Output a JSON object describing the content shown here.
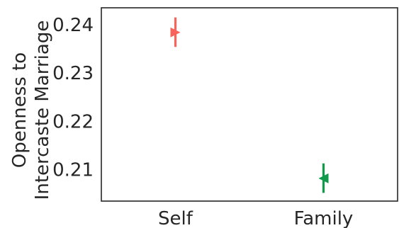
{
  "chart_data": {
    "type": "scatter",
    "title": "",
    "ylabel_lines": [
      "Openness to",
      "Intercaste Marriage"
    ],
    "xlabel": "",
    "categories": [
      "Self",
      "Family"
    ],
    "ylim": [
      0.2035,
      0.2435
    ],
    "yticks": [
      0.21,
      0.22,
      0.23,
      0.24
    ],
    "ytick_labels": [
      "0.21",
      "0.22",
      "0.23",
      "0.24"
    ],
    "grid": false,
    "points": [
      {
        "category": "Self",
        "value": 0.2384,
        "ci": [
          0.2354,
          0.2415
        ],
        "color": "#f8645c",
        "marker": "right-triangle"
      },
      {
        "category": "Family",
        "value": 0.2082,
        "ci": [
          0.2052,
          0.2113
        ],
        "color": "#119a4b",
        "marker": "left-triangle"
      }
    ]
  }
}
